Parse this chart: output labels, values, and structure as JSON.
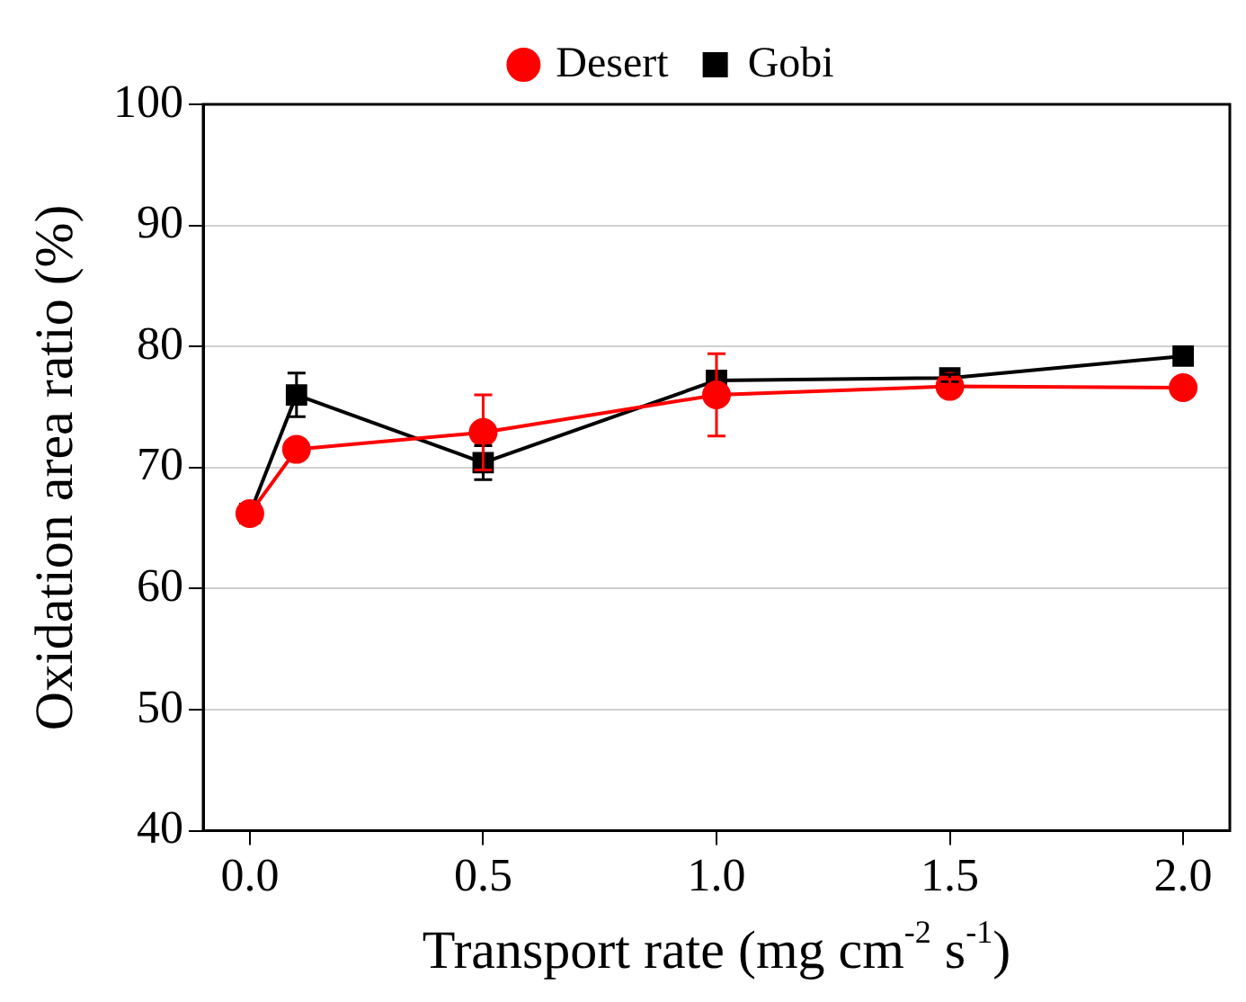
{
  "chart_data": {
    "type": "line",
    "xlabel": "Transport rate (mg cm$^{-2}$ s$^{-1}$)",
    "ylabel": "Oxidation area ratio (%)",
    "x": [
      0,
      0.1,
      0.5,
      1.0,
      1.5,
      2.0
    ],
    "series": [
      {
        "name": "Gobi",
        "color": "#000000",
        "marker": "square",
        "values": [
          66.2,
          76.0,
          70.4,
          77.2,
          77.4,
          79.2
        ],
        "errors": [
          null,
          1.8,
          1.4,
          null,
          0.3,
          null
        ]
      },
      {
        "name": "Desert",
        "color": "#ff0000",
        "marker": "circle",
        "values": [
          66.2,
          71.5,
          72.9,
          76.0,
          76.7,
          76.6
        ],
        "errors": [
          null,
          null,
          3.1,
          3.4,
          0.6,
          null
        ]
      }
    ],
    "xlim": [
      -0.1,
      2.1
    ],
    "xticks": [
      {
        "value": 0,
        "label": "0.0"
      },
      {
        "value": 0.5,
        "label": "0.5"
      },
      {
        "value": 1,
        "label": "1.0"
      },
      {
        "value": 1.5,
        "label": "1.5"
      },
      {
        "value": 2,
        "label": "2.0"
      }
    ],
    "ylim": [
      40,
      100
    ],
    "yticks": [
      40,
      50,
      60,
      70,
      80,
      90,
      100
    ],
    "grid": "y",
    "legend": "top",
    "line_style": "solid"
  }
}
